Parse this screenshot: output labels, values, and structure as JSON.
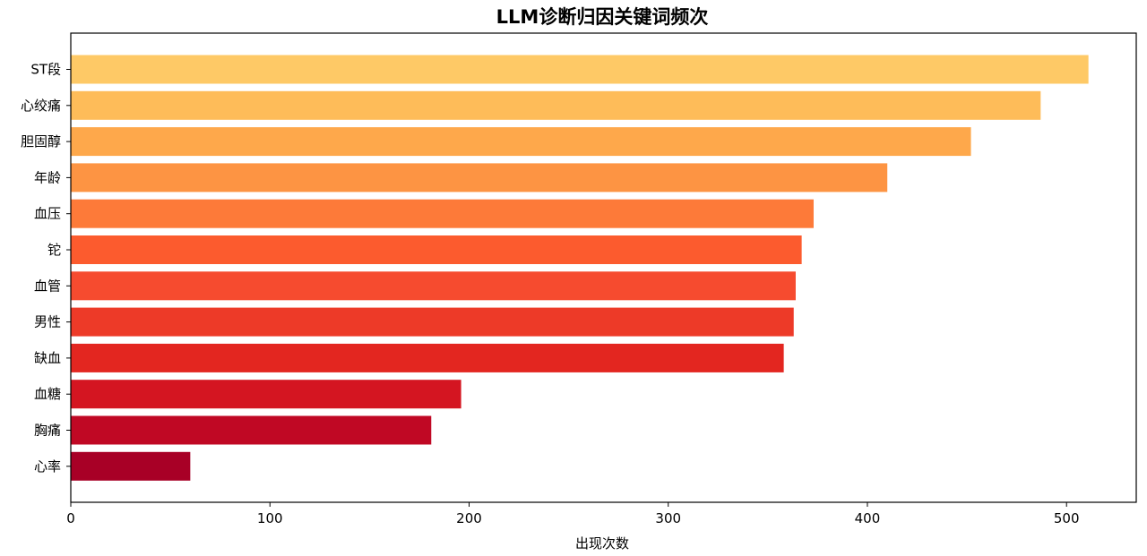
{
  "chart_data": {
    "type": "bar",
    "orientation": "horizontal",
    "title": "LLM诊断归因关键词频次",
    "xlabel": "出现次数",
    "ylabel": "",
    "xlim": [
      0,
      535
    ],
    "xticks": [
      0,
      100,
      200,
      300,
      400,
      500
    ],
    "grid": false,
    "categories": [
      "ST段",
      "心绞痛",
      "胆固醇",
      "年龄",
      "血压",
      "铊",
      "血管",
      "男性",
      "缺血",
      "血糖",
      "胸痛",
      "心率"
    ],
    "values": [
      511,
      487,
      452,
      410,
      373,
      367,
      364,
      363,
      358,
      196,
      181,
      60
    ],
    "colors": [
      "#fec966",
      "#febc59",
      "#fea84b",
      "#fd9443",
      "#fd7a39",
      "#fc5b2e",
      "#f64b2f",
      "#ed3a28",
      "#e32620",
      "#d41521",
      "#c00824",
      "#a80026"
    ]
  }
}
